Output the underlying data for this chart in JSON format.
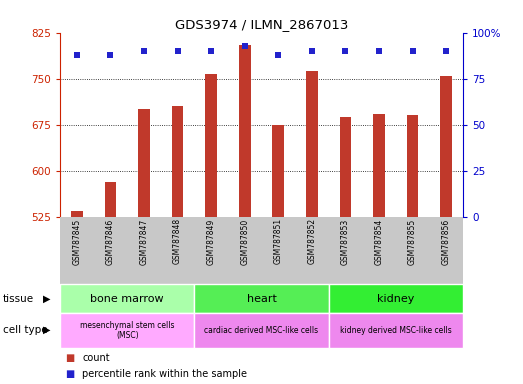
{
  "title": "GDS3974 / ILMN_2867013",
  "samples": [
    "GSM787845",
    "GSM787846",
    "GSM787847",
    "GSM787848",
    "GSM787849",
    "GSM787850",
    "GSM787851",
    "GSM787852",
    "GSM787853",
    "GSM787854",
    "GSM787855",
    "GSM787856"
  ],
  "bar_values": [
    535,
    582,
    700,
    706,
    758,
    805,
    675,
    762,
    688,
    693,
    691,
    755
  ],
  "percentile_values": [
    88,
    88,
    90,
    90,
    90,
    93,
    88,
    90,
    90,
    90,
    90,
    90
  ],
  "bar_color": "#c0392b",
  "dot_color": "#2222cc",
  "ylim_left": [
    525,
    825
  ],
  "ylim_right": [
    0,
    100
  ],
  "yticks_left": [
    525,
    600,
    675,
    750,
    825
  ],
  "yticks_right": [
    0,
    25,
    50,
    75,
    100
  ],
  "tissue_groups": [
    {
      "label": "bone marrow",
      "start": 0,
      "end": 3,
      "color": "#aaffaa"
    },
    {
      "label": "heart",
      "start": 4,
      "end": 7,
      "color": "#55ee55"
    },
    {
      "label": "kidney",
      "start": 8,
      "end": 11,
      "color": "#33ee33"
    }
  ],
  "celltype_groups": [
    {
      "label": "mesenchymal stem cells\n(MSC)",
      "start": 0,
      "end": 3,
      "color": "#ffaaff"
    },
    {
      "label": "cardiac derived MSC-like cells",
      "start": 4,
      "end": 7,
      "color": "#ee88ee"
    },
    {
      "label": "kidney derived MSC-like cells",
      "start": 8,
      "end": 11,
      "color": "#ee88ee"
    }
  ],
  "tissue_row_label": "tissue",
  "celltype_row_label": "cell type",
  "legend_count_label": "count",
  "legend_percentile_label": "percentile rank within the sample",
  "bar_width": 0.35,
  "bg_color": "#ffffff",
  "tick_label_color_left": "#cc2200",
  "tick_label_color_right": "#0000cc",
  "xtick_bg_color": "#c8c8c8",
  "n_samples": 12
}
